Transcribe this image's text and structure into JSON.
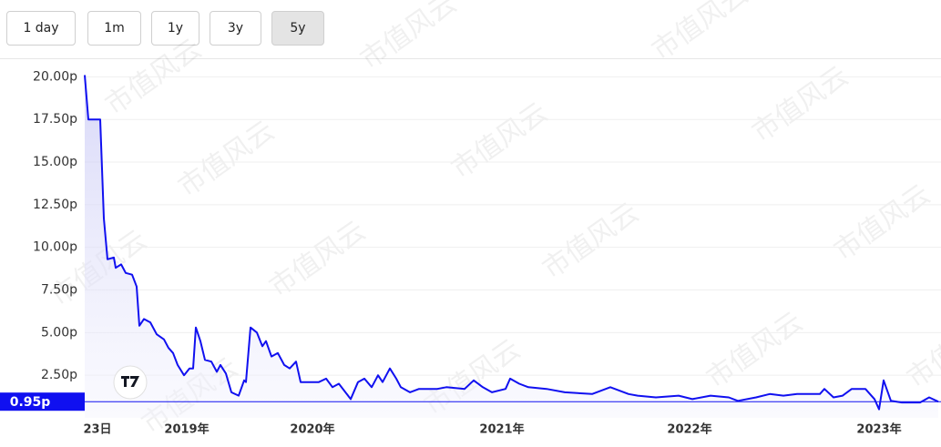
{
  "buttons": [
    "1 day",
    "1m",
    "1y",
    "3y",
    "5y"
  ],
  "active_button": 4,
  "watermark": "市值风云",
  "chart_data": {
    "type": "line",
    "x": [
      0,
      0.4,
      1.7,
      2.1,
      2.5,
      3.2,
      3.4,
      4.0,
      4.5,
      5.2,
      5.7,
      6.0,
      6.5,
      7.2,
      7.9,
      8.7,
      9.2,
      9.7,
      10.2,
      10.9,
      11.5,
      11.9,
      12.2,
      12.7,
      13.2,
      13.9,
      14.5,
      14.9,
      15.5,
      16.1,
      16.9,
      17.5,
      17.7,
      18.2,
      18.9,
      19.5,
      19.9,
      20.5,
      21.2,
      21.9,
      22.5,
      23.2,
      23.7,
      25.7,
      26.5,
      27.2,
      27.9,
      29.2,
      30.0,
      30.7,
      31.5,
      32.2,
      32.7,
      33.5,
      34.2,
      34.7,
      35.7,
      36.7,
      38.7,
      39.7,
      41.7,
      42.7,
      43.7,
      44.7,
      46.2,
      46.7,
      47.7,
      48.7,
      50.7,
      52.7,
      55.7,
      57.7,
      59.7,
      60.7,
      62.7,
      65.2,
      66.7,
      68.7,
      70.7,
      71.7,
      73.7,
      75.2,
      76.7,
      78.2,
      80.7,
      81.2,
      82.2,
      83.2,
      84.2,
      85.7,
      86.7,
      87.2,
      87.7,
      88.5,
      89.7,
      91.7,
      92.7,
      93.7
    ],
    "values": [
      20.1,
      17.5,
      17.5,
      11.7,
      9.3,
      9.4,
      8.8,
      9.0,
      8.5,
      8.4,
      7.7,
      5.4,
      5.8,
      5.6,
      4.9,
      4.6,
      4.1,
      3.8,
      3.1,
      2.5,
      2.9,
      2.9,
      5.3,
      4.5,
      3.4,
      3.3,
      2.7,
      3.1,
      2.6,
      1.5,
      1.3,
      2.2,
      2.1,
      5.3,
      5.0,
      4.2,
      4.5,
      3.6,
      3.8,
      3.1,
      2.9,
      3.3,
      2.1,
      2.1,
      2.3,
      1.8,
      2.0,
      1.1,
      2.1,
      2.3,
      1.8,
      2.5,
      2.1,
      2.9,
      2.3,
      1.8,
      1.5,
      1.7,
      1.7,
      1.8,
      1.7,
      2.2,
      1.8,
      1.5,
      1.7,
      2.3,
      2.0,
      1.8,
      1.7,
      1.5,
      1.4,
      1.8,
      1.4,
      1.3,
      1.2,
      1.3,
      1.1,
      1.3,
      1.2,
      1.0,
      1.2,
      1.4,
      1.3,
      1.4,
      1.4,
      1.7,
      1.2,
      1.3,
      1.7,
      1.7,
      1.1,
      0.5,
      2.2,
      1.0,
      0.9,
      0.9,
      1.2,
      0.95
    ],
    "color": "#1010f0",
    "xlim": [
      0,
      93.7
    ],
    "xticks": [
      {
        "value": 1.4,
        "label": "23日"
      },
      {
        "value": 11.2,
        "label": "2019年"
      },
      {
        "value": 25,
        "label": "2020年"
      },
      {
        "value": 45.8,
        "label": "2021年"
      },
      {
        "value": 66.4,
        "label": "2022年"
      },
      {
        "value": 87.2,
        "label": "2023年"
      }
    ],
    "ylim": [
      0,
      20.9
    ],
    "yticks": [
      {
        "value": 2.5,
        "label": "2.50p"
      },
      {
        "value": 5,
        "label": "5.00p"
      },
      {
        "value": 7.5,
        "label": "7.50p"
      },
      {
        "value": 10,
        "label": "10.00p"
      },
      {
        "value": 12.5,
        "label": "12.50p"
      },
      {
        "value": 15,
        "label": "15.00p"
      },
      {
        "value": 17.5,
        "label": "17.50p"
      },
      {
        "value": 20,
        "label": "20.00p"
      }
    ],
    "grid": true,
    "last_price": {
      "value": 0.95,
      "label": "0.95p"
    }
  }
}
